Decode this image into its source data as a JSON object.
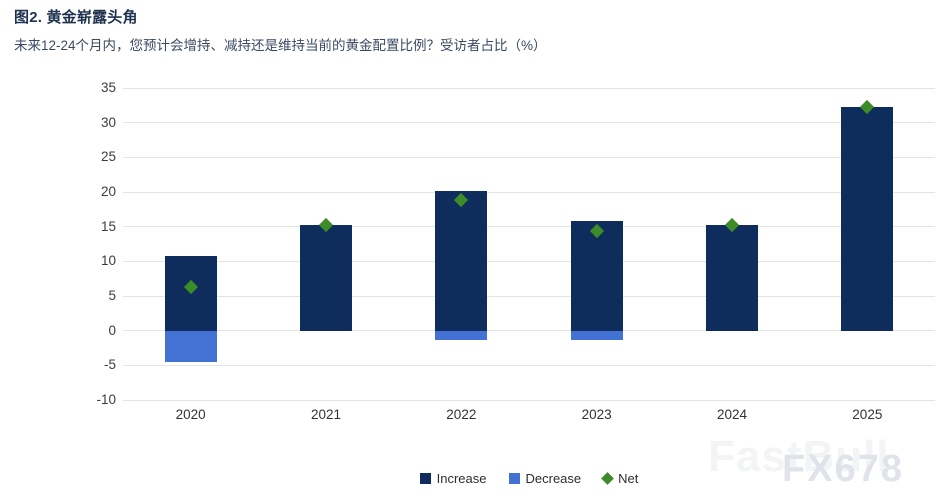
{
  "header": {
    "title": "图2. 黄金崭露头角",
    "subtitle": "未来12-24个月内，您预计会增持、减持还是维持当前的黄金配置比例？受访者占比（%）"
  },
  "chart_data": {
    "type": "bar",
    "title": "图2. 黄金崭露头角",
    "subtitle": "未来12-24个月内，您预计会增持、减持还是维持当前的黄金配置比例？受访者占比（%）",
    "categories": [
      "2020",
      "2021",
      "2022",
      "2023",
      "2024",
      "2025"
    ],
    "series": [
      {
        "name": "Increase",
        "type": "bar",
        "color": "#0e2d5c",
        "values": [
          10.8,
          15.2,
          20.2,
          15.8,
          15.2,
          32.3
        ]
      },
      {
        "name": "Decrease",
        "type": "bar",
        "color": "#4372d4",
        "values": [
          -4.5,
          0,
          -1.4,
          -1.4,
          0,
          0
        ]
      },
      {
        "name": "Net",
        "type": "scatter",
        "marker": "diamond",
        "color": "#3d8c28",
        "values": [
          6.3,
          15.2,
          18.8,
          14.4,
          15.2,
          32.3
        ]
      }
    ],
    "xlabel": "",
    "ylabel": "",
    "ylim": [
      -10,
      35
    ],
    "ytick_step": 5,
    "grid": "horizontal",
    "gridline_color": "#e4e4e4",
    "legend_position": "bottom"
  },
  "legend": {
    "items": [
      {
        "label": "Increase",
        "color": "#0e2d5c",
        "marker": "square"
      },
      {
        "label": "Decrease",
        "color": "#4372d4",
        "marker": "square"
      },
      {
        "label": "Net",
        "color": "#3d8c28",
        "marker": "diamond"
      }
    ]
  },
  "watermark": {
    "text1": "FastBull",
    "text2": "FX678"
  },
  "colors": {
    "increase": "#0e2d5c",
    "decrease": "#4372d4",
    "net": "#3d8c28",
    "title": "#1f3350",
    "subtitle": "#3a4a63",
    "axis_text": "#3d3d3d"
  }
}
